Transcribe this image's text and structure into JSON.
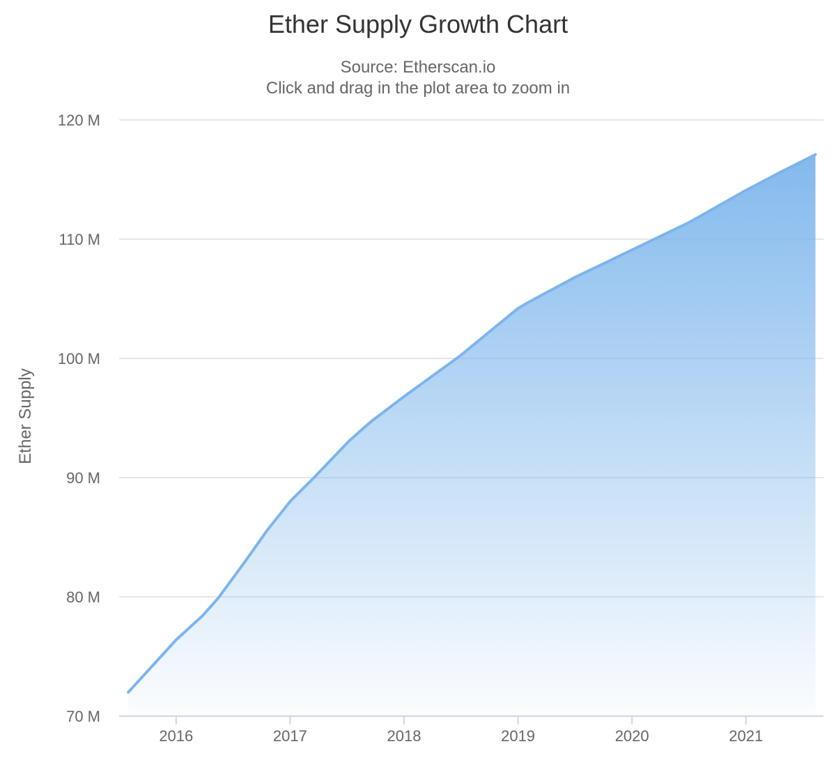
{
  "chart_data": {
    "type": "area",
    "title": "Ether Supply Growth Chart",
    "subtitle": [
      "Source: Etherscan.io",
      "Click and drag in the plot area to zoom in"
    ],
    "ylabel": "Ether Supply",
    "xlabel": "",
    "legend": "none",
    "grid": true,
    "xlim": [
      2015.5,
      2021.68
    ],
    "ylim": [
      70,
      120
    ],
    "unit": "M",
    "series": [
      {
        "name": "Ether Supply",
        "points": [
          [
            2015.58,
            72.0
          ],
          [
            2015.8,
            74.3
          ],
          [
            2016.0,
            76.4
          ],
          [
            2016.23,
            78.4
          ],
          [
            2016.37,
            79.9
          ],
          [
            2016.6,
            82.9
          ],
          [
            2016.8,
            85.6
          ],
          [
            2017.0,
            88.0
          ],
          [
            2017.21,
            90.0
          ],
          [
            2017.52,
            93.1
          ],
          [
            2017.71,
            94.7
          ],
          [
            2018.0,
            96.8
          ],
          [
            2018.49,
            100.2
          ],
          [
            2019.0,
            104.2
          ],
          [
            2019.09,
            104.7
          ],
          [
            2019.5,
            106.8
          ],
          [
            2020.0,
            109.1
          ],
          [
            2020.5,
            111.4
          ],
          [
            2021.0,
            114.1
          ],
          [
            2021.3,
            115.6
          ],
          [
            2021.61,
            117.1
          ]
        ]
      }
    ],
    "x_ticks": [
      {
        "value": 2016,
        "label": "2016"
      },
      {
        "value": 2017,
        "label": "2017"
      },
      {
        "value": 2018,
        "label": "2018"
      },
      {
        "value": 2019,
        "label": "2019"
      },
      {
        "value": 2020,
        "label": "2020"
      },
      {
        "value": 2021,
        "label": "2021"
      }
    ],
    "y_ticks": [
      {
        "value": 70,
        "label": "70 M"
      },
      {
        "value": 80,
        "label": "80 M"
      },
      {
        "value": 90,
        "label": "90 M"
      },
      {
        "value": 100,
        "label": "100 M"
      },
      {
        "value": 110,
        "label": "110 M"
      },
      {
        "value": 120,
        "label": "120 M"
      }
    ],
    "colors": {
      "line": "#7cb5ec",
      "fill_top": "#7cb5ec",
      "fill_bottom": "#f8fbfe",
      "grid": "#e6e6e6",
      "axis_line": "#ccd6eb",
      "title_text": "#333333",
      "body_text": "#666666"
    }
  }
}
